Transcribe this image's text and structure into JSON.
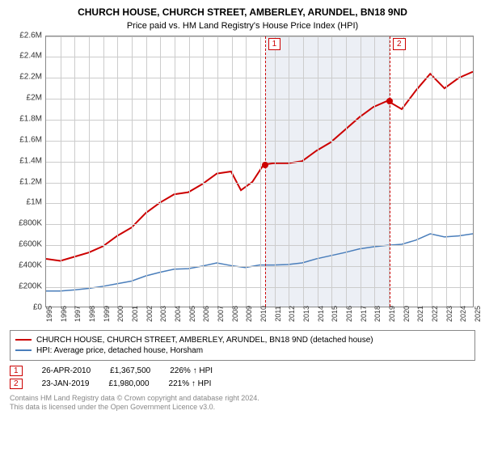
{
  "title": "CHURCH HOUSE, CHURCH STREET, AMBERLEY, ARUNDEL, BN18 9ND",
  "subtitle": "Price paid vs. HM Land Registry's House Price Index (HPI)",
  "chart": {
    "type": "line",
    "ylim": [
      0,
      2600000
    ],
    "ytick_step": 200000,
    "ytick_labels": [
      "£0",
      "£200K",
      "£400K",
      "£600K",
      "£800K",
      "£1M",
      "£1.2M",
      "£1.4M",
      "£1.6M",
      "£1.8M",
      "£2M",
      "£2.2M",
      "£2.4M",
      "£2.6M"
    ],
    "xlim": [
      1995,
      2025
    ],
    "xtick_step": 1,
    "xtick_labels": [
      "1995",
      "1996",
      "1997",
      "1998",
      "1999",
      "2000",
      "2001",
      "2002",
      "2003",
      "2004",
      "2005",
      "2006",
      "2007",
      "2008",
      "2009",
      "2010",
      "2011",
      "2012",
      "2013",
      "2014",
      "2015",
      "2016",
      "2017",
      "2018",
      "2019",
      "2020",
      "2021",
      "2022",
      "2023",
      "2024",
      "2025"
    ],
    "grid_color": "#cccccc",
    "background_color": "#ffffff",
    "series": [
      {
        "name": "property",
        "label": "CHURCH HOUSE, CHURCH STREET, AMBERLEY, ARUNDEL, BN18 9ND (detached house)",
        "color": "#cc0000",
        "line_width": 2,
        "x": [
          1995,
          1996,
          1997,
          1998,
          1999,
          2000,
          2001,
          2002,
          2003,
          2004,
          2005,
          2006,
          2007,
          2008,
          2008.7,
          2009.5,
          2010.3,
          2011,
          2012,
          2013,
          2014,
          2015,
          2016,
          2017,
          2018,
          2019,
          2020,
          2021,
          2022,
          2023,
          2024,
          2025
        ],
        "y": [
          460000,
          440000,
          480000,
          520000,
          580000,
          680000,
          760000,
          900000,
          1000000,
          1080000,
          1100000,
          1180000,
          1280000,
          1300000,
          1120000,
          1200000,
          1367500,
          1380000,
          1380000,
          1400000,
          1500000,
          1580000,
          1700000,
          1820000,
          1920000,
          1980000,
          1900000,
          2080000,
          2240000,
          2100000,
          2200000,
          2260000
        ]
      },
      {
        "name": "hpi",
        "label": "HPI: Average price, detached house, Horsham",
        "color": "#4a7ebb",
        "line_width": 1.5,
        "x": [
          1995,
          1996,
          1997,
          1998,
          1999,
          2000,
          2001,
          2002,
          2003,
          2004,
          2005,
          2006,
          2007,
          2008,
          2009,
          2010,
          2011,
          2012,
          2013,
          2014,
          2015,
          2016,
          2017,
          2018,
          2019,
          2020,
          2021,
          2022,
          2023,
          2024,
          2025
        ],
        "y": [
          150000,
          150000,
          160000,
          175000,
          195000,
          220000,
          245000,
          295000,
          330000,
          360000,
          365000,
          390000,
          420000,
          395000,
          375000,
          400000,
          400000,
          405000,
          420000,
          460000,
          490000,
          520000,
          555000,
          575000,
          590000,
          600000,
          640000,
          700000,
          670000,
          680000,
          700000
        ]
      }
    ],
    "markers": [
      {
        "id": "1",
        "x": 2010.32,
        "date": "26-APR-2010",
        "price": "£1,367,500",
        "delta": "226% ↑ HPI",
        "y_dot": 1367500
      },
      {
        "id": "2",
        "x": 2019.06,
        "date": "23-JAN-2019",
        "price": "£1,980,000",
        "delta": "221% ↑ HPI",
        "y_dot": 1980000
      }
    ],
    "shade": {
      "from": 2010.32,
      "to": 2019.06,
      "color": "rgba(200,210,225,0.35)"
    }
  },
  "legend": {
    "items": [
      {
        "color": "#cc0000",
        "label": "CHURCH HOUSE, CHURCH STREET, AMBERLEY, ARUNDEL, BN18 9ND (detached house)"
      },
      {
        "color": "#4a7ebb",
        "label": "HPI: Average price, detached house, Horsham"
      }
    ]
  },
  "footer_line1": "Contains HM Land Registry data © Crown copyright and database right 2024.",
  "footer_line2": "This data is licensed under the Open Government Licence v3.0."
}
